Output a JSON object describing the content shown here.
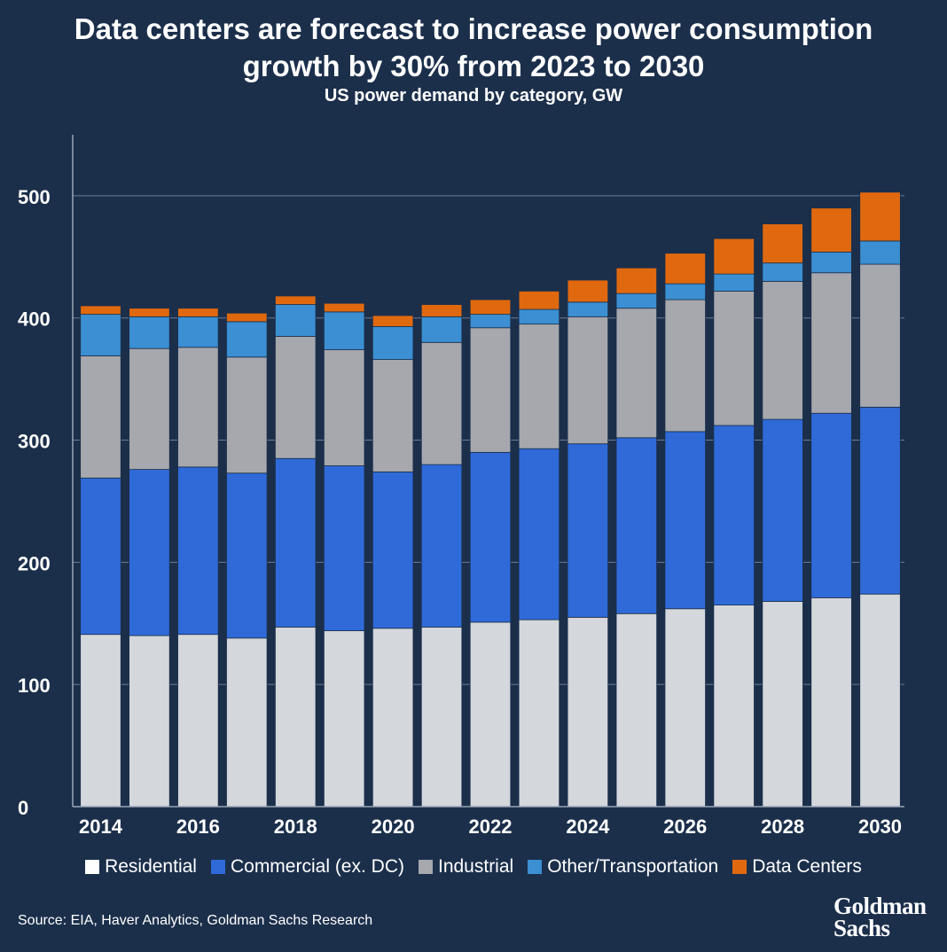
{
  "title_line1": "Data centers are forecast to increase power consumption",
  "title_line2": "growth by 30% from 2023 to 2030",
  "subtitle": "US power demand by category, GW",
  "source": "Source: EIA, Haver Analytics, Goldman Sachs Research",
  "logo": "Goldman Sachs",
  "chart_data": {
    "type": "bar",
    "stacked": true,
    "title": "Data centers are forecast to increase power consumption growth by 30% from 2023 to 2030",
    "subtitle": "US power demand by category, GW",
    "xlabel": "",
    "ylabel": "",
    "ylim": [
      0,
      550
    ],
    "yticks": [
      0,
      100,
      200,
      300,
      400,
      500
    ],
    "grid": true,
    "legend_position": "bottom",
    "categories": [
      "2014",
      "2015",
      "2016",
      "2017",
      "2018",
      "2019",
      "2020",
      "2021",
      "2022",
      "2023",
      "2024",
      "2025",
      "2026",
      "2027",
      "2028",
      "2029",
      "2030"
    ],
    "xtick_labels": [
      "2014",
      "2016",
      "2018",
      "2020",
      "2022",
      "2024",
      "2026",
      "2028",
      "2030"
    ],
    "series": [
      {
        "name": "Residential",
        "color": "#d4d7dc",
        "values": [
          141,
          140,
          141,
          138,
          147,
          144,
          146,
          147,
          151,
          153,
          155,
          158,
          162,
          165,
          168,
          171,
          174
        ]
      },
      {
        "name": "Commercial (ex. DC)",
        "color": "#2f6ad8",
        "values": [
          128,
          136,
          137,
          135,
          138,
          135,
          128,
          133,
          139,
          140,
          142,
          144,
          145,
          147,
          149,
          151,
          153
        ]
      },
      {
        "name": "Industrial",
        "color": "#a6a8ad",
        "values": [
          100,
          99,
          98,
          95,
          100,
          95,
          92,
          100,
          102,
          102,
          104,
          106,
          108,
          110,
          113,
          115,
          117
        ]
      },
      {
        "name": "Other/Transportation",
        "color": "#3b8fd2",
        "values": [
          34,
          26,
          25,
          29,
          26,
          31,
          27,
          21,
          11,
          12,
          12,
          12,
          13,
          14,
          15,
          17,
          19
        ]
      },
      {
        "name": "Data Centers",
        "color": "#e0690f",
        "values": [
          7,
          7,
          7,
          7,
          7,
          7,
          9,
          10,
          12,
          15,
          18,
          21,
          25,
          29,
          32,
          36,
          40
        ]
      }
    ]
  }
}
